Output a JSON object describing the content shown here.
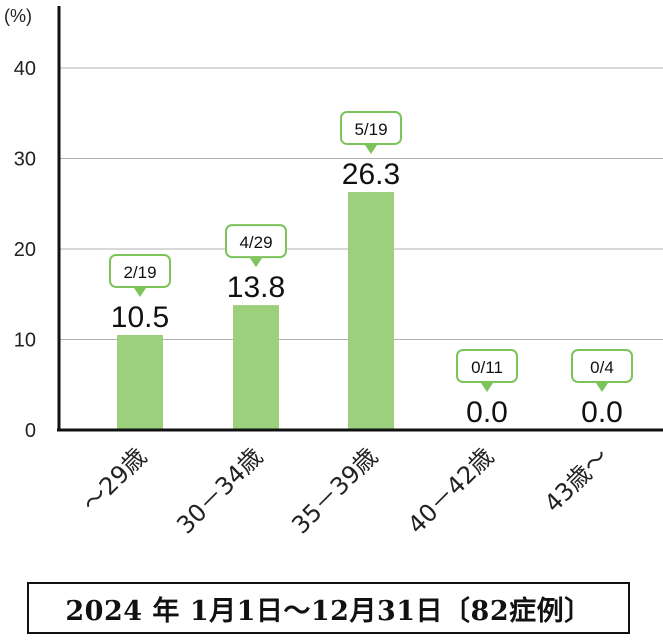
{
  "chart_data": {
    "type": "bar",
    "ylabel": "(%)",
    "ylim": [
      0,
      40
    ],
    "yticks": [
      "0",
      "10",
      "20",
      "30",
      "40"
    ],
    "grid": true,
    "categories": [
      "～29歳",
      "30－34歳",
      "35－39歳",
      "40－42歳",
      "43歳～"
    ],
    "values": [
      10.5,
      13.8,
      26.3,
      0.0,
      0.0
    ],
    "value_labels": [
      "10.5",
      "13.8",
      "26.3",
      "0.0",
      "0.0"
    ],
    "callouts": [
      "2/19",
      "4/29",
      "5/19",
      "0/11",
      "0/4"
    ],
    "colors": {
      "bar": "#9dd07c",
      "callout_border": "#7cc35a",
      "axis": "#111111",
      "grid": "#b0b0b0"
    }
  },
  "caption": "2024 年 1月1日～12月31日〔82症例〕"
}
